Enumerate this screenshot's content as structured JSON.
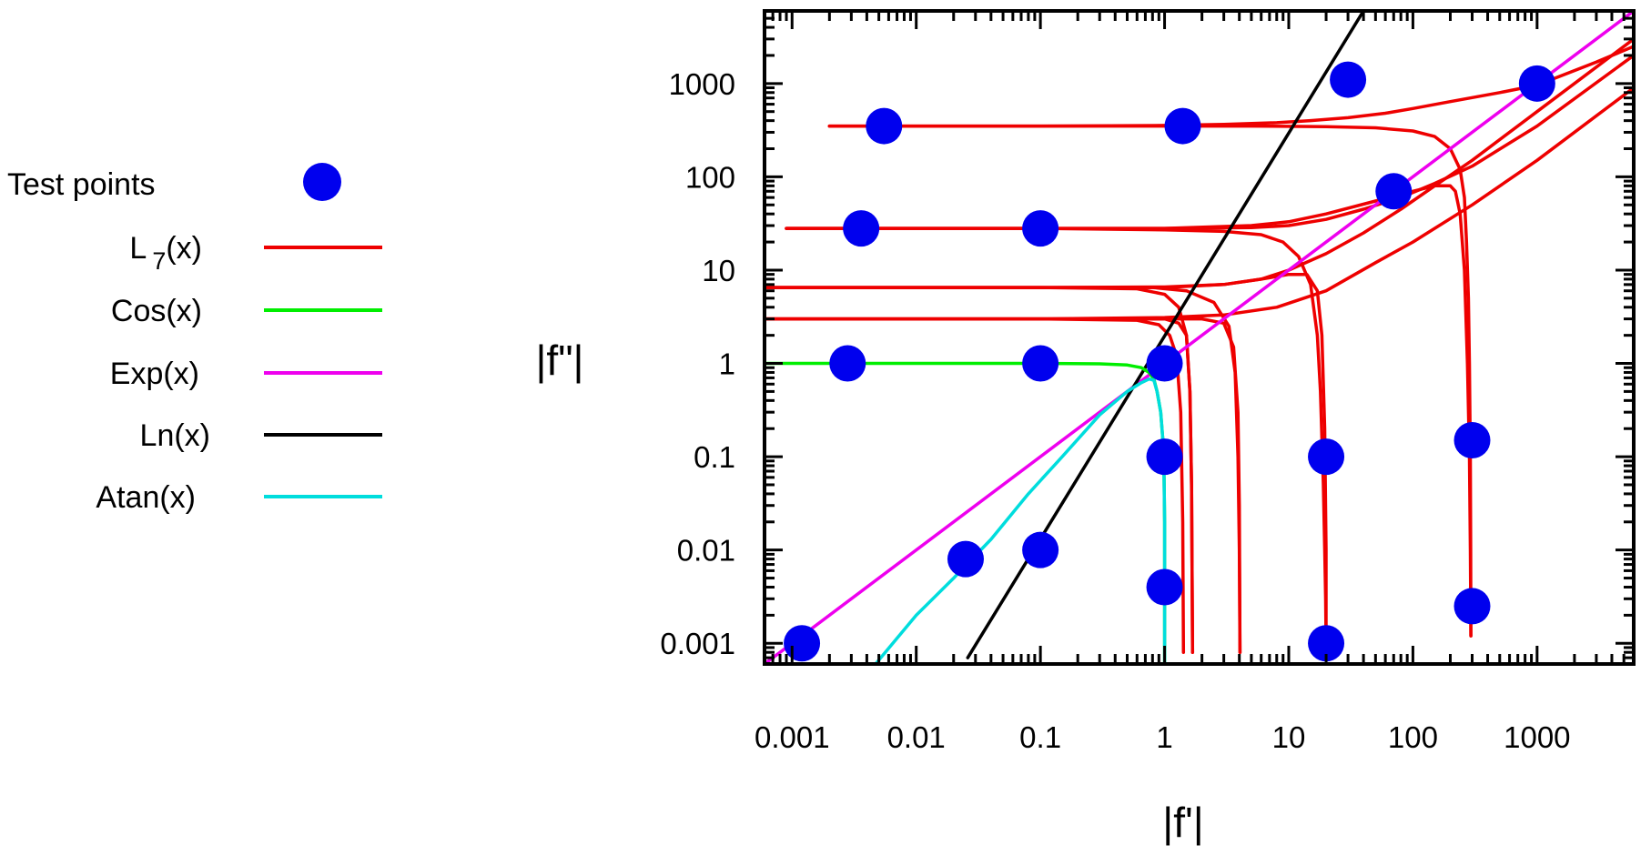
{
  "chart_data": {
    "type": "line",
    "title": "",
    "xlabel": "|f'|",
    "ylabel": "|f\"|",
    "x_scale": "log",
    "y_scale": "log",
    "xlim": [
      0.0006,
      6000
    ],
    "ylim": [
      0.0006,
      6000
    ],
    "x_ticks": [
      {
        "v": 0.001,
        "label": "0.001"
      },
      {
        "v": 0.01,
        "label": "0.01"
      },
      {
        "v": 0.1,
        "label": "0.1"
      },
      {
        "v": 1,
        "label": "1"
      },
      {
        "v": 10,
        "label": "10"
      },
      {
        "v": 100,
        "label": "100"
      },
      {
        "v": 1000,
        "label": "1000"
      }
    ],
    "y_ticks": [
      {
        "v": 0.001,
        "label": "0.001"
      },
      {
        "v": 0.01,
        "label": "0.01"
      },
      {
        "v": 0.1,
        "label": "0.1"
      },
      {
        "v": 1,
        "label": "1"
      },
      {
        "v": 10,
        "label": "10"
      },
      {
        "v": 100,
        "label": "100"
      },
      {
        "v": 1000,
        "label": "1000"
      }
    ],
    "grid": false,
    "legend_position": "left, outside plot",
    "legend": [
      {
        "label": "Test points",
        "kind": "marker",
        "color": "#0000ee"
      },
      {
        "label": "L",
        "sub": "7",
        "suffix": "(x)",
        "kind": "line",
        "color": "#ee0000"
      },
      {
        "label": "Cos(x)",
        "kind": "line",
        "color": "#00ee00"
      },
      {
        "label": "Exp(x)",
        "kind": "line",
        "color": "#ee00ee"
      },
      {
        "label": "Ln(x)",
        "kind": "line",
        "color": "#000000"
      },
      {
        "label": "Atan(x)",
        "kind": "line",
        "color": "#00dddd"
      }
    ],
    "test_points": {
      "name": "Test points",
      "color": "#0000ee",
      "points": [
        [
          0.0012,
          0.001
        ],
        [
          0.0028,
          1
        ],
        [
          0.0036,
          28
        ],
        [
          0.0055,
          350
        ],
        [
          0.025,
          0.008
        ],
        [
          0.1,
          0.01
        ],
        [
          0.1,
          1
        ],
        [
          0.1,
          28
        ],
        [
          1,
          0.004
        ],
        [
          1,
          0.1
        ],
        [
          1,
          1
        ],
        [
          1.4,
          350
        ],
        [
          20,
          0.001
        ],
        [
          20,
          0.1
        ],
        [
          30,
          1100
        ],
        [
          70,
          70
        ],
        [
          300,
          0.0025
        ],
        [
          300,
          0.15
        ],
        [
          1000,
          1000
        ]
      ]
    },
    "series": [
      {
        "name": "Exp(x)",
        "color": "#ee00ee",
        "x": [
          0.0006,
          6000
        ],
        "y": [
          0.0006,
          6000
        ]
      },
      {
        "name": "Ln(x)",
        "color": "#000000",
        "x": [
          0.026,
          40
        ],
        "y": [
          0.0007,
          6000
        ]
      },
      {
        "name": "Cos(x)",
        "color": "#00ee00",
        "x": [
          0.0006,
          0.01,
          0.1,
          0.3,
          0.5,
          0.65,
          0.75,
          0.82,
          0.87,
          0.93,
          0.97,
          0.99,
          1.0,
          1.0,
          1.0
        ],
        "y": [
          1,
          1,
          1,
          0.99,
          0.96,
          0.9,
          0.8,
          0.68,
          0.5,
          0.3,
          0.15,
          0.06,
          0.02,
          0.003,
          0.0006
        ]
      },
      {
        "name": "Atan(x)",
        "color": "#00dddd",
        "x": [
          0.0047,
          0.01,
          0.02,
          0.04,
          0.08,
          0.15,
          0.3,
          0.5,
          0.65,
          0.75,
          0.82,
          0.87,
          0.93,
          0.97,
          0.99,
          1.0,
          1.0,
          1.0
        ],
        "y": [
          0.0006,
          0.002,
          0.005,
          0.013,
          0.04,
          0.1,
          0.28,
          0.5,
          0.62,
          0.68,
          0.66,
          0.5,
          0.3,
          0.15,
          0.06,
          0.02,
          0.003,
          0.0006
        ]
      },
      {
        "name": "L7(x)",
        "color": "#ee0000",
        "x": [
          0.002,
          0.1,
          1,
          3,
          8,
          15,
          30,
          60,
          100,
          200,
          500,
          1000,
          3000,
          6000
        ],
        "y": [
          350,
          350,
          355,
          365,
          380,
          400,
          430,
          480,
          540,
          640,
          800,
          960,
          1700,
          2500
        ]
      },
      {
        "name": "L7(x)",
        "color": "#ee0000",
        "x": [
          0.002,
          0.1,
          1,
          5,
          20,
          50,
          100,
          150,
          200,
          240,
          260,
          270,
          280,
          285,
          290,
          292,
          293
        ],
        "y": [
          350,
          350,
          350,
          350,
          345,
          335,
          310,
          270,
          200,
          120,
          60,
          20,
          5,
          1,
          0.1,
          0.01,
          0.0012
        ]
      },
      {
        "name": "L7(x)",
        "color": "#ee0000",
        "x": [
          0.0009,
          0.1,
          1,
          5,
          10,
          20,
          40,
          80,
          150,
          300,
          1000,
          6000
        ],
        "y": [
          28,
          28,
          28,
          28.5,
          30,
          35,
          45,
          60,
          85,
          130,
          350,
          2000
        ]
      },
      {
        "name": "L7(x)",
        "color": "#ee0000",
        "x": [
          0.0009,
          0.1,
          1,
          5,
          10,
          20,
          50,
          100,
          150,
          200,
          220,
          240,
          260,
          275,
          285,
          290,
          293
        ],
        "y": [
          28,
          28,
          28,
          30,
          33,
          40,
          55,
          70,
          80,
          80,
          70,
          40,
          10,
          1,
          0.1,
          0.01,
          0.0012
        ]
      },
      {
        "name": "L7(x)",
        "color": "#ee0000",
        "x": [
          0.0009,
          0.1,
          1,
          3,
          6,
          9,
          12,
          15,
          17,
          18,
          19,
          19.5,
          19.8,
          20
        ],
        "y": [
          28,
          28,
          27,
          26,
          24,
          20,
          14,
          7,
          2,
          0.5,
          0.05,
          0.01,
          0.003,
          0.001
        ]
      },
      {
        "name": "L7(x)",
        "color": "#ee0000",
        "x": [
          0.0006,
          0.1,
          1,
          3,
          6,
          10,
          20,
          40,
          80,
          150,
          300,
          1000,
          6000
        ],
        "y": [
          6.5,
          6.5,
          6.6,
          7,
          8,
          10,
          15,
          25,
          45,
          80,
          150,
          500,
          3000
        ]
      },
      {
        "name": "L7(x)",
        "color": "#ee0000",
        "x": [
          0.0006,
          0.1,
          1,
          3,
          6,
          10,
          14,
          17,
          18.5,
          19.5,
          20,
          20
        ],
        "y": [
          6.5,
          6.5,
          6.5,
          7,
          8,
          9,
          9,
          6,
          2,
          0.2,
          0.01,
          0.001
        ]
      },
      {
        "name": "L7(x)",
        "color": "#ee0000",
        "x": [
          0.0006,
          0.1,
          0.8,
          1.5,
          2.5,
          3.3,
          3.7,
          3.9,
          4,
          4.05
        ],
        "y": [
          6.5,
          6.5,
          6.5,
          6,
          4.5,
          2.5,
          0.8,
          0.1,
          0.01,
          0.0008
        ]
      },
      {
        "name": "L7(x)",
        "color": "#ee0000",
        "x": [
          0.0006,
          0.1,
          0.6,
          1,
          1.3,
          1.5,
          1.6,
          1.65,
          1.68
        ],
        "y": [
          6.5,
          6.5,
          6.3,
          5.5,
          4,
          2,
          0.5,
          0.05,
          0.0008
        ]
      },
      {
        "name": "L7(x)",
        "color": "#ee0000",
        "x": [
          0.0006,
          0.1,
          0.6,
          1,
          1.3,
          1.5,
          1.6,
          1.65,
          1.68
        ],
        "y": [
          3,
          3,
          3,
          3,
          2.7,
          2,
          0.5,
          0.05,
          0.0008
        ]
      },
      {
        "name": "L7(x)",
        "color": "#ee0000",
        "x": [
          0.0006,
          0.1,
          0.6,
          0.9,
          1.1,
          1.25,
          1.35,
          1.4,
          1.42
        ],
        "y": [
          3,
          3,
          2.9,
          2.6,
          2,
          1.2,
          0.3,
          0.02,
          0.0008
        ]
      },
      {
        "name": "L7(x)",
        "color": "#ee0000",
        "x": [
          0.0006,
          0.1,
          1,
          2,
          3,
          3.6,
          3.9,
          4,
          4.05
        ],
        "y": [
          3,
          3,
          3,
          3,
          2.7,
          1.5,
          0.3,
          0.03,
          0.0008
        ]
      },
      {
        "name": "L7(x)",
        "color": "#ee0000",
        "x": [
          0.0006,
          0.1,
          1,
          3,
          8,
          20,
          50,
          100,
          300,
          1000,
          6000
        ],
        "y": [
          3,
          3,
          3.1,
          3.3,
          4,
          6,
          12,
          20,
          50,
          150,
          900
        ]
      }
    ]
  }
}
